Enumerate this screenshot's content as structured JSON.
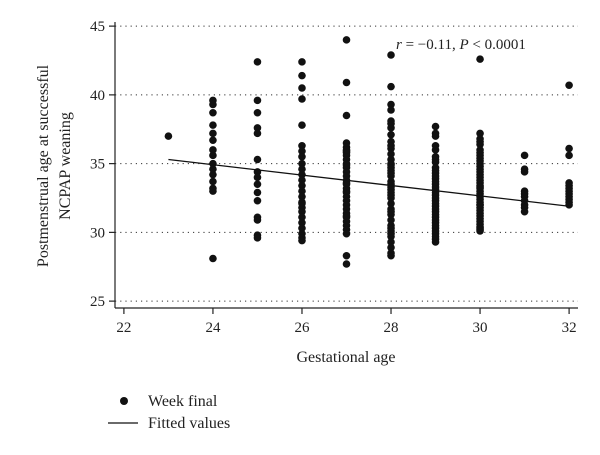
{
  "chart_data": {
    "type": "scatter",
    "xlabel": "Gestational age",
    "ylabel": [
      "Postmenstrual age at successful",
      "NCPAP weaning"
    ],
    "xlim": [
      21.8,
      32.2
    ],
    "ylim": [
      24.5,
      45.3
    ],
    "xticks": [
      22,
      24,
      26,
      28,
      30,
      32
    ],
    "yticks": [
      25,
      30,
      35,
      40,
      45
    ],
    "grid": "horizontal-dotted",
    "annotation": {
      "r_symbol": "r",
      "r_value": " = −0.11, ",
      "p_symbol": "P",
      "p_value": " < 0.0001"
    },
    "legend": {
      "placement": "bottom-left",
      "entries": [
        {
          "label": "Week final",
          "marker": "dot"
        },
        {
          "label": "Fitted values",
          "marker": "line"
        }
      ]
    },
    "series": [
      {
        "name": "Week final",
        "kind": "points",
        "color": "#111111",
        "x": [
          23,
          24,
          24,
          24,
          24,
          24,
          24,
          24,
          24,
          24,
          24,
          24,
          24,
          24,
          24,
          24,
          25,
          25,
          25,
          25,
          25,
          25,
          25,
          25,
          25,
          25,
          25,
          25,
          25,
          25,
          25,
          26,
          26,
          26,
          26,
          26,
          26,
          26,
          26,
          26,
          26,
          26,
          26,
          26,
          26,
          26,
          26,
          26,
          26,
          26,
          26,
          26,
          26,
          26,
          26,
          26,
          27,
          27,
          27,
          27,
          27,
          27,
          27,
          27,
          27,
          27,
          27,
          27,
          27,
          27,
          27,
          27,
          27,
          27,
          27,
          27,
          27,
          27,
          27,
          27,
          27,
          27,
          27,
          27,
          27,
          27,
          27,
          27,
          27,
          27,
          28,
          28,
          28,
          28,
          28,
          28,
          28,
          28,
          28,
          28,
          28,
          28,
          28,
          28,
          28,
          28,
          28,
          28,
          28,
          28,
          28,
          28,
          28,
          28,
          28,
          28,
          28,
          28,
          28,
          28,
          28,
          28,
          28,
          28,
          28,
          28,
          28,
          28,
          28,
          28,
          29,
          29,
          29,
          29,
          29,
          29,
          29,
          29,
          29,
          29,
          29,
          29,
          29,
          29,
          29,
          29,
          29,
          29,
          29,
          29,
          29,
          29,
          29,
          29,
          29,
          29,
          29,
          29,
          29,
          29,
          29,
          29,
          29,
          29,
          29,
          29,
          30,
          30,
          30,
          30,
          30,
          30,
          30,
          30,
          30,
          30,
          30,
          30,
          30,
          30,
          30,
          30,
          30,
          30,
          30,
          30,
          30,
          30,
          30,
          30,
          30,
          30,
          30,
          30,
          30,
          30,
          30,
          30,
          30,
          30,
          30,
          30,
          30,
          30,
          30,
          31,
          31,
          31,
          31,
          31,
          31,
          31,
          31,
          31,
          31,
          32,
          32,
          32,
          32,
          32,
          32,
          32,
          32,
          32,
          32,
          32,
          32
        ],
        "y": [
          37.0,
          39.6,
          39.3,
          38.7,
          37.8,
          37.2,
          36.7,
          36.0,
          35.6,
          35.0,
          34.6,
          34.2,
          33.7,
          33.2,
          33.0,
          28.1,
          42.4,
          39.6,
          38.7,
          37.6,
          37.2,
          35.3,
          34.4,
          34.0,
          33.5,
          32.9,
          32.3,
          31.1,
          30.9,
          29.8,
          29.6,
          42.4,
          41.4,
          40.5,
          39.7,
          37.8,
          36.3,
          35.9,
          35.5,
          35.0,
          34.6,
          34.2,
          33.8,
          33.4,
          33.0,
          32.6,
          32.2,
          31.8,
          31.5,
          31.1,
          30.7,
          30.3,
          29.9,
          29.6,
          29.4,
          32.1,
          44.0,
          40.9,
          38.5,
          36.5,
          36.2,
          35.9,
          35.6,
          35.3,
          35.0,
          34.7,
          34.4,
          34.1,
          33.8,
          33.5,
          33.2,
          32.9,
          32.6,
          32.3,
          32.0,
          31.7,
          31.4,
          31.1,
          30.8,
          30.5,
          30.2,
          29.9,
          28.3,
          27.7,
          33.6,
          34.9,
          35.8,
          33.0,
          31.2,
          36.0,
          42.9,
          40.6,
          39.3,
          38.9,
          38.1,
          37.6,
          37.1,
          36.6,
          36.1,
          35.7,
          35.3,
          34.9,
          34.5,
          34.1,
          33.7,
          33.3,
          32.9,
          32.5,
          32.1,
          31.7,
          31.3,
          30.9,
          30.5,
          30.1,
          29.7,
          29.3,
          28.9,
          28.5,
          28.3,
          33.5,
          34.3,
          35.0,
          31.5,
          30.3,
          36.3,
          32.7,
          29.9,
          33.1,
          37.9,
          34.7,
          37.7,
          37.2,
          36.3,
          35.5,
          35.1,
          34.7,
          34.3,
          33.9,
          33.5,
          33.1,
          32.7,
          32.3,
          31.9,
          31.5,
          31.1,
          30.7,
          30.3,
          29.9,
          29.5,
          29.3,
          33.3,
          32.5,
          31.7,
          30.9,
          30.1,
          34.5,
          35.3,
          32.9,
          32.1,
          31.3,
          30.5,
          29.7,
          33.7,
          34.1,
          36.0,
          37.0,
          42.6,
          37.2,
          36.8,
          36.4,
          36.0,
          35.6,
          35.2,
          34.8,
          34.4,
          34.0,
          33.6,
          33.2,
          32.8,
          32.4,
          32.0,
          31.6,
          31.2,
          30.8,
          30.4,
          30.1,
          34.2,
          33.0,
          31.8,
          30.6,
          35.4,
          33.8,
          32.2,
          31.0,
          30.3,
          36.6,
          34.6,
          33.4,
          32.6,
          31.4,
          30.2,
          35.8,
          35.0,
          33.3,
          32.0,
          35.6,
          34.6,
          34.4,
          33.0,
          32.8,
          32.6,
          32.3,
          32.0,
          31.8,
          31.5,
          40.7,
          36.1,
          35.6,
          33.6,
          33.4,
          33.2,
          33.0,
          32.8,
          32.6,
          32.4,
          32.2,
          32.0
        ]
      },
      {
        "name": "Fitted values",
        "kind": "line",
        "color": "#111111",
        "x": [
          23,
          32
        ],
        "y": [
          35.3,
          31.9
        ]
      }
    ]
  }
}
